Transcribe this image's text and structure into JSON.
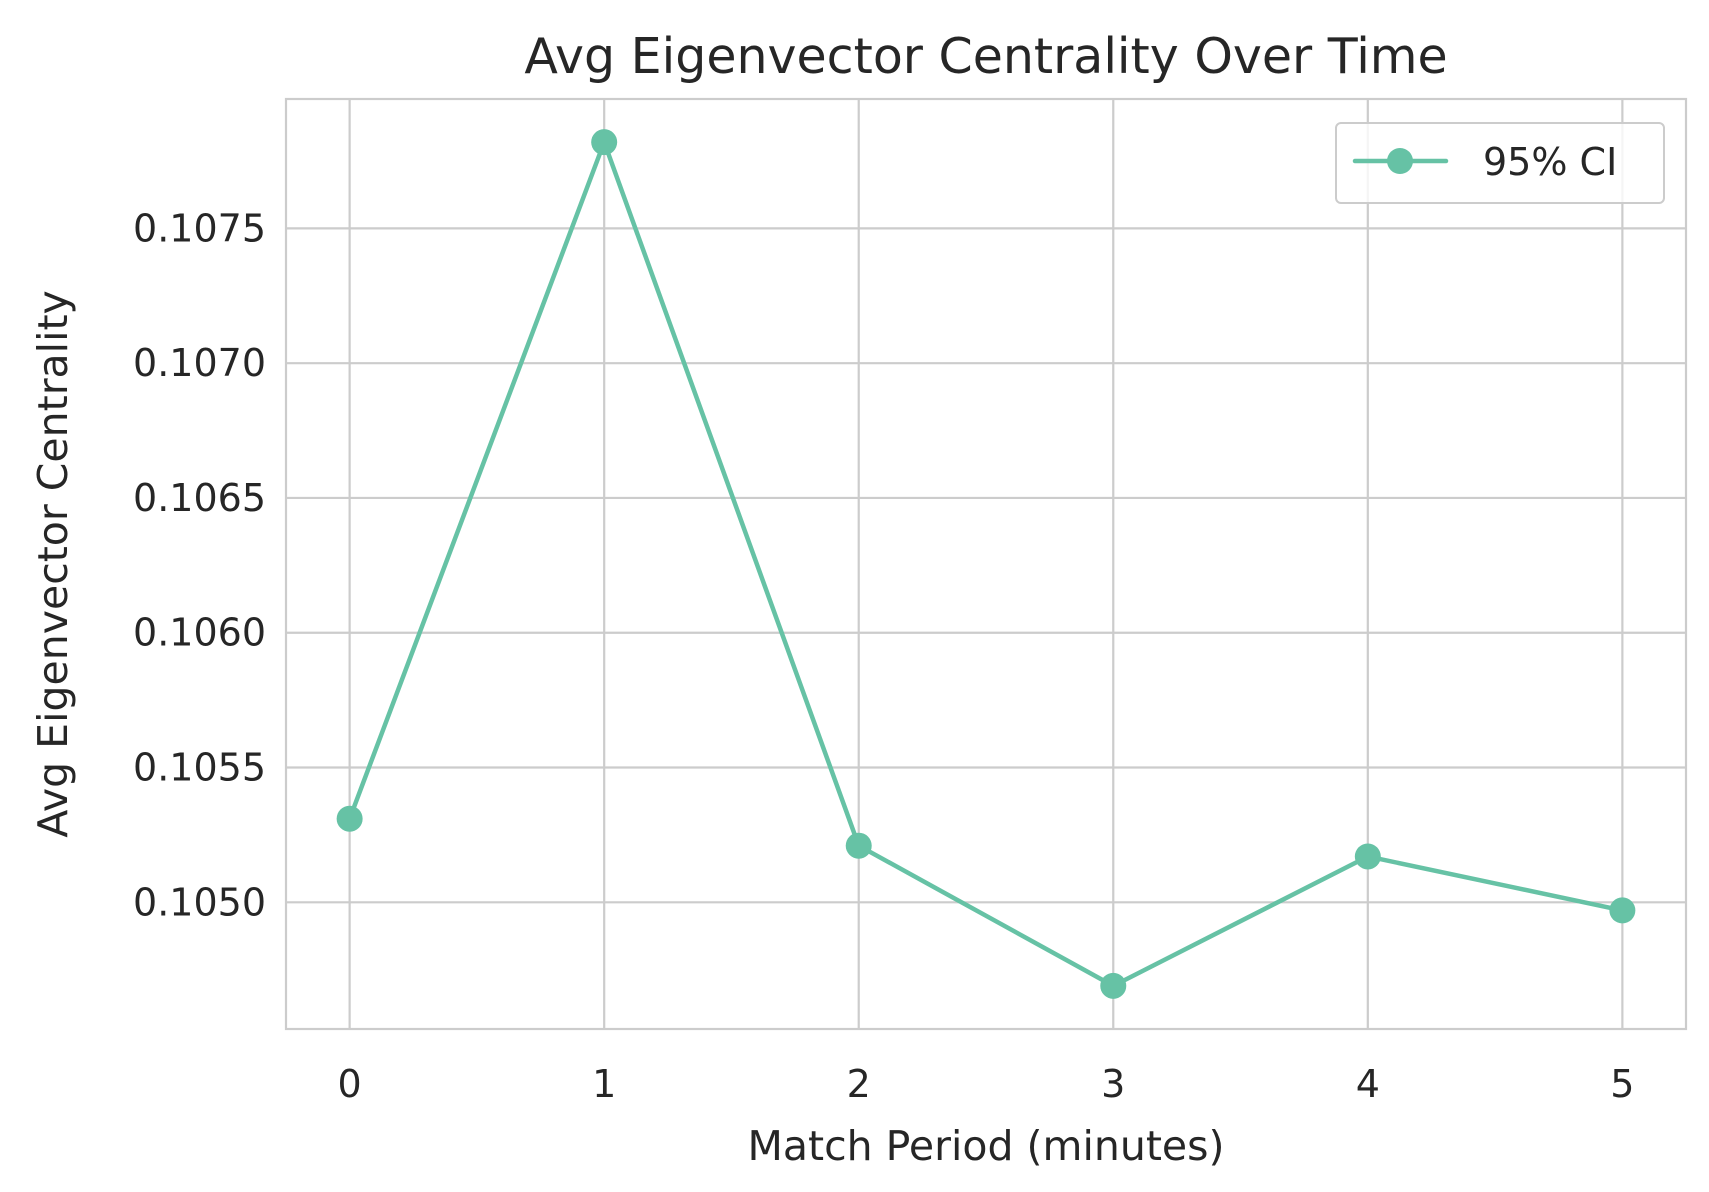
{
  "chart_data": {
    "type": "line",
    "title": "Avg Eigenvector Centrality Over Time",
    "xlabel": "Match Period (minutes)",
    "ylabel": "Avg Eigenvector Centrality",
    "x": [
      0,
      1,
      2,
      3,
      4,
      5
    ],
    "xticks": [
      "0",
      "1",
      "2",
      "3",
      "4",
      "5"
    ],
    "yticks": [
      0.105,
      0.1055,
      0.106,
      0.1065,
      0.107,
      0.1075
    ],
    "ytick_labels": [
      "0.1050",
      "0.1055",
      "0.1060",
      "0.1065",
      "0.1070",
      "0.1075"
    ],
    "xlim": [
      -0.25,
      5.25
    ],
    "ylim": [
      0.10453,
      0.10798
    ],
    "grid": true,
    "legend_position": "top-right",
    "series": [
      {
        "name": "95% CI",
        "color": "#66c2a5",
        "marker": "circle",
        "values": [
          0.10531,
          0.10782,
          0.10521,
          0.10469,
          0.10517,
          0.10497
        ]
      }
    ]
  }
}
